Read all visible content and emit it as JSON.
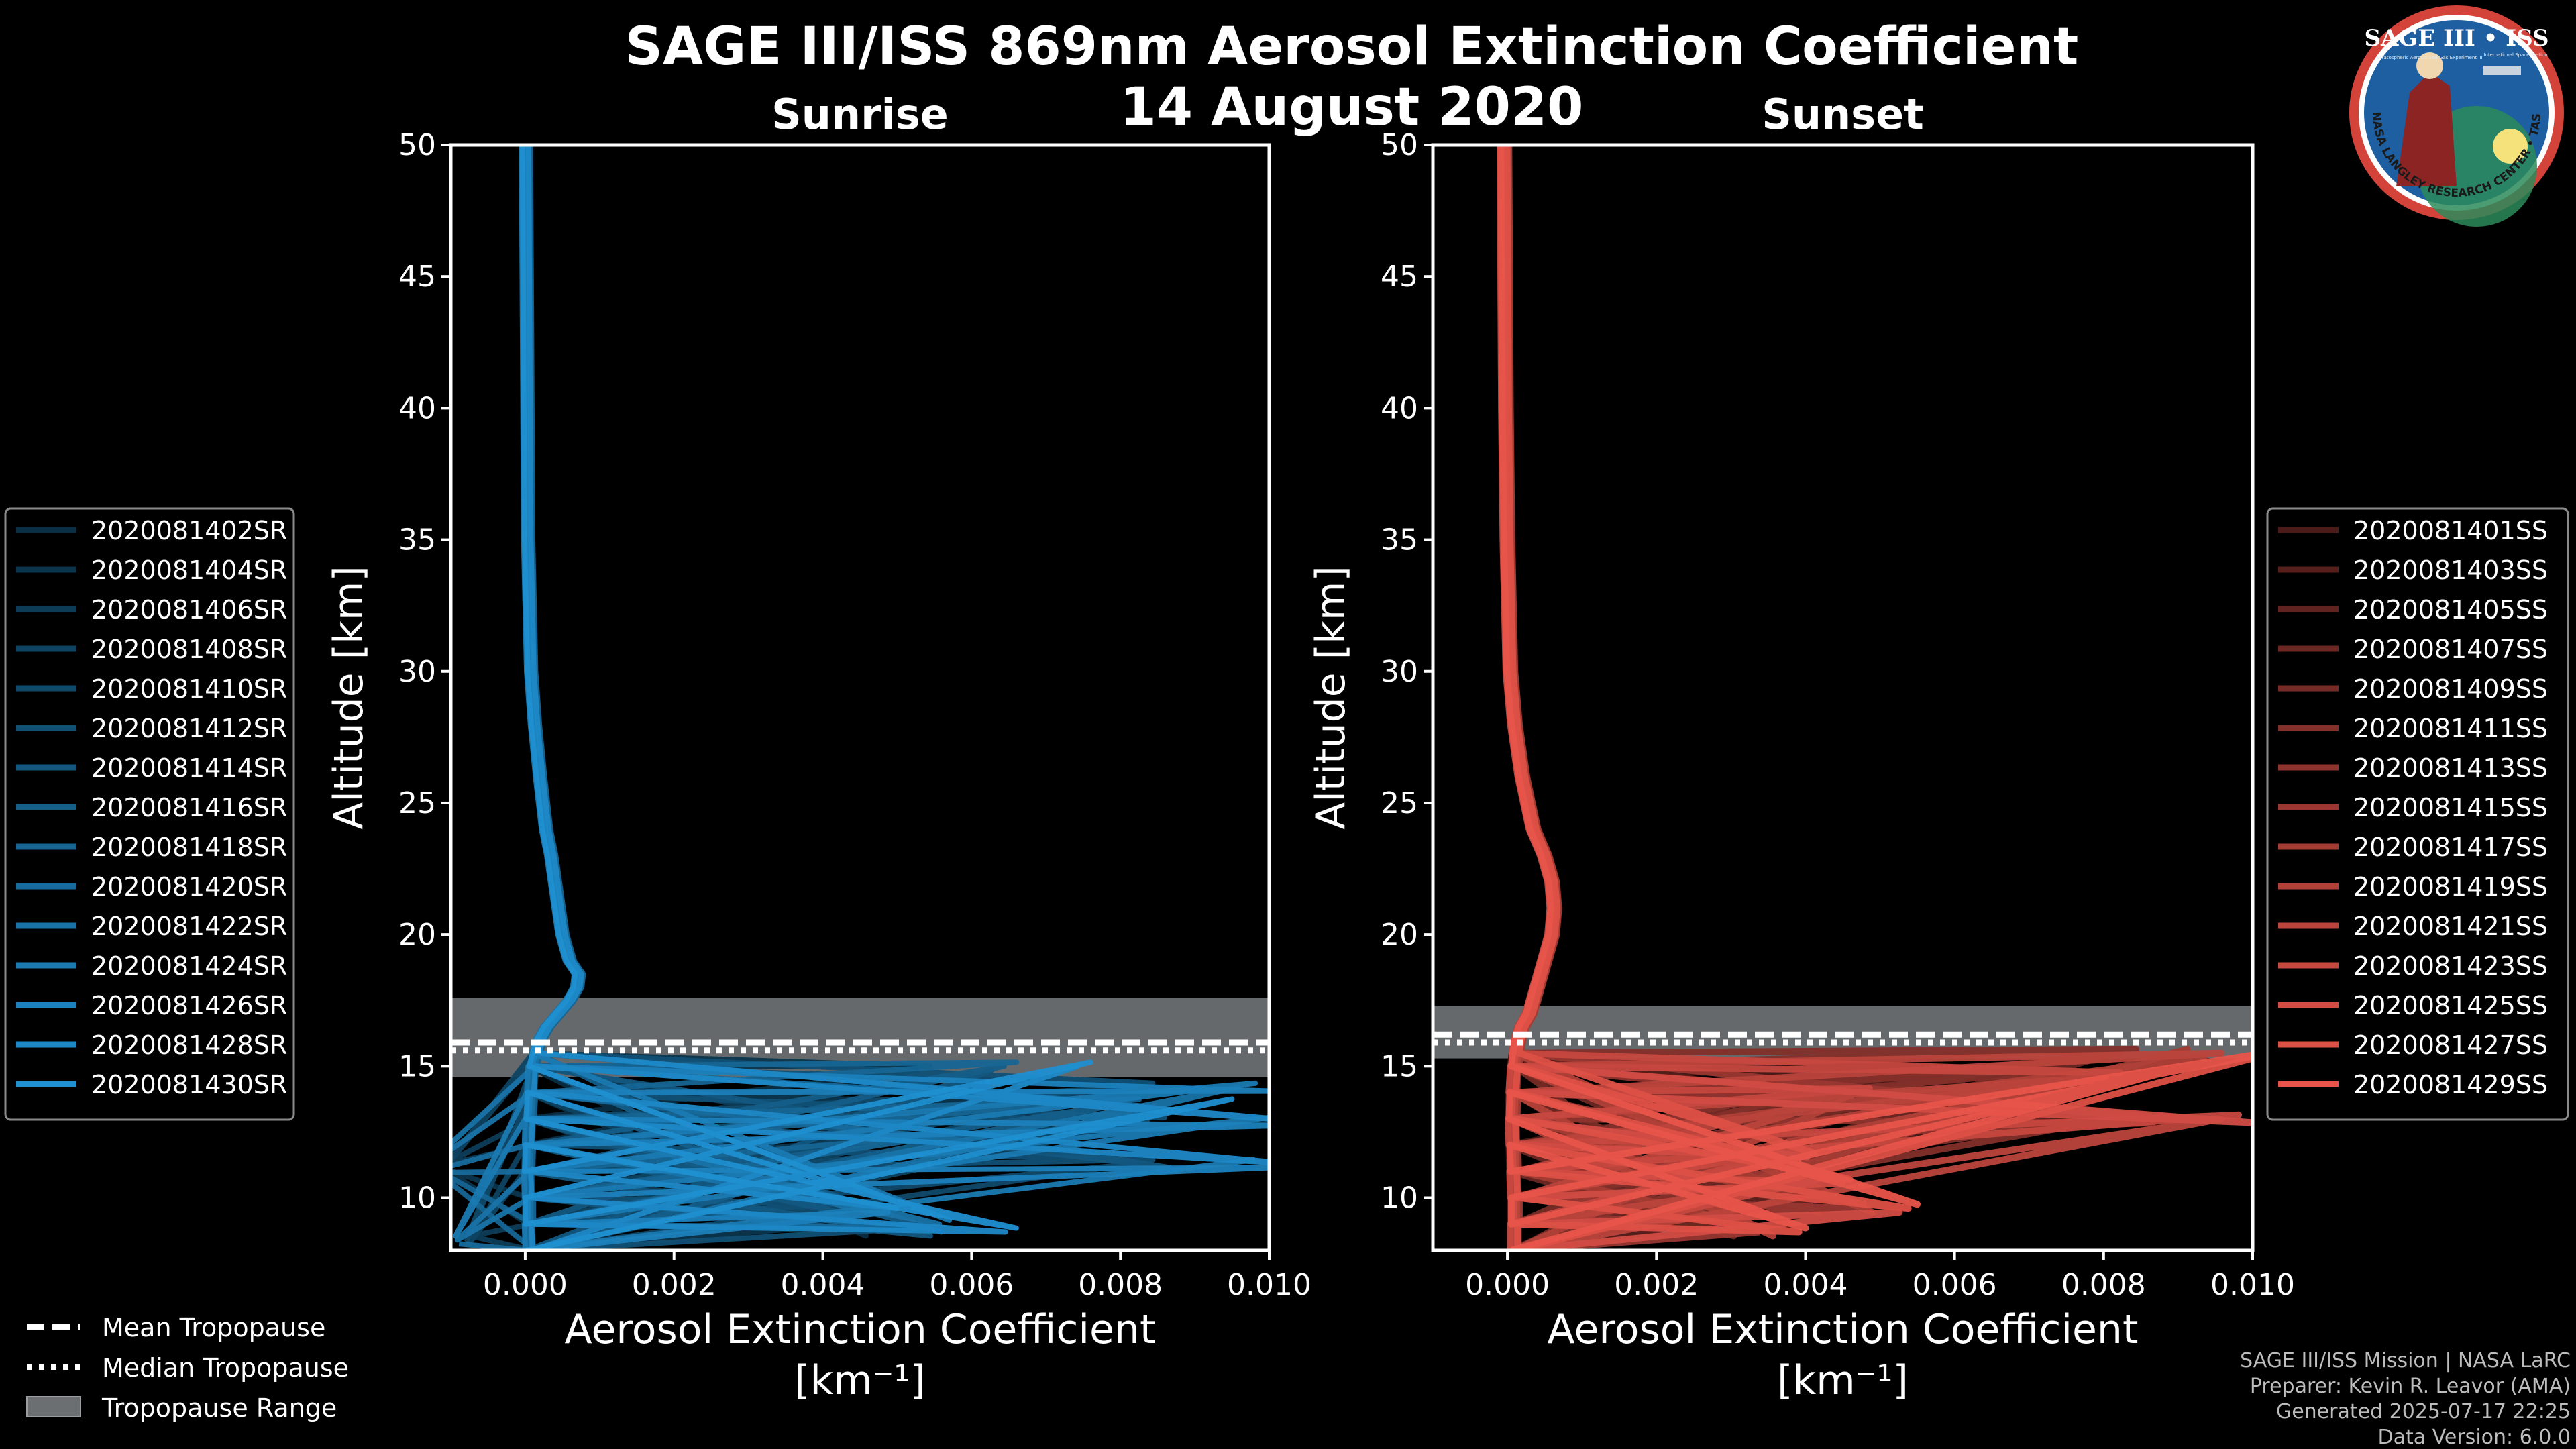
{
  "title_line1": "SAGE III/ISS 869nm Aerosol Extinction Coefficient",
  "title_line2": "14 August 2020",
  "logo": {
    "text_top": "SAGE III • ISS",
    "text_ring": "BALL • NASA LANGLEY RESEARCH CENTER • TAS-I • ESA",
    "small_left": "Stratospheric Aerosol and Gas Experiment III",
    "small_right": "International Space Station"
  },
  "footer": {
    "line1": "SAGE III/ISS Mission | NASA LaRC",
    "line2": "Preparer: Kevin R. Leavor (AMA)",
    "line3": "Generated 2025-07-17 22:25",
    "line4": "Data Version: 6.0.0"
  },
  "tropopause_legend": [
    {
      "label": "Mean Tropopause",
      "style": "dashed"
    },
    {
      "label": "Median Tropopause",
      "style": "dotted"
    },
    {
      "label": "Tropopause Range",
      "style": "patch"
    }
  ],
  "colors": {
    "sunrise": "#1f8fd0",
    "sunset": "#e8544a",
    "range_patch": "#6b6f72",
    "frame": "#ffffff"
  },
  "chart_data": [
    {
      "type": "line",
      "subtitle": "Sunrise",
      "xlabel": "Aerosol Extinction Coefficient",
      "xunits": "[km⁻¹]",
      "ylabel": "Altitude [km]",
      "xlim": [
        -0.001,
        0.01
      ],
      "ylim": [
        8,
        50
      ],
      "xticks": [
        0.0,
        0.002,
        0.004,
        0.006,
        0.008,
        0.01
      ],
      "xtick_labels": [
        "0.000",
        "0.002",
        "0.004",
        "0.006",
        "0.008",
        "0.010"
      ],
      "yticks": [
        10,
        15,
        20,
        25,
        30,
        35,
        40,
        45,
        50
      ],
      "tropopause": {
        "mean": 15.9,
        "median": 15.6,
        "range": [
          14.6,
          17.6
        ]
      },
      "legend": [
        "2020081402SR",
        "2020081404SR",
        "2020081406SR",
        "2020081408SR",
        "2020081410SR",
        "2020081412SR",
        "2020081414SR",
        "2020081416SR",
        "2020081418SR",
        "2020081420SR",
        "2020081422SR",
        "2020081424SR",
        "2020081426SR",
        "2020081428SR",
        "2020081430SR"
      ],
      "profile": {
        "alt": [
          50,
          45,
          40,
          35,
          30,
          28,
          26,
          24,
          23,
          22,
          21,
          20,
          19,
          18.5,
          18,
          17.5,
          17,
          16.5,
          16,
          15.5,
          15,
          14,
          13,
          12,
          11,
          10,
          9,
          8
        ],
        "ext": [
          1e-05,
          2e-05,
          3e-05,
          4e-05,
          8e-05,
          0.00013,
          0.0002,
          0.00028,
          0.00035,
          0.0004,
          0.00045,
          0.0005,
          0.0006,
          0.00072,
          0.0007,
          0.0006,
          0.00045,
          0.0003,
          0.0002,
          0.00015,
          0.0001,
          8e-05,
          6e-05,
          5e-05,
          4e-05,
          5e-05,
          5e-05,
          6e-05
        ]
      },
      "spikes": [
        {
          "alt": 15.0,
          "ext": 0.0076
        },
        {
          "alt": 14.2,
          "ext": 0.0105
        },
        {
          "alt": 13.6,
          "ext": 0.0095
        },
        {
          "alt": 12.9,
          "ext": 0.0107
        },
        {
          "alt": 12.3,
          "ext": 0.0067
        },
        {
          "alt": 11.3,
          "ext": 0.0105
        },
        {
          "alt": 11.1,
          "ext": -0.0015
        },
        {
          "alt": 9.6,
          "ext": 0.0051
        },
        {
          "alt": 9.0,
          "ext": 0.0061
        },
        {
          "alt": 8.7,
          "ext": 0.0066
        },
        {
          "alt": 8.4,
          "ext": -0.001
        }
      ]
    },
    {
      "type": "line",
      "subtitle": "Sunset",
      "xlabel": "Aerosol Extinction Coefficient",
      "xunits": "[km⁻¹]",
      "ylabel": "Altitude [km]",
      "xlim": [
        -0.001,
        0.01
      ],
      "ylim": [
        8,
        50
      ],
      "xticks": [
        0.0,
        0.002,
        0.004,
        0.006,
        0.008,
        0.01
      ],
      "xtick_labels": [
        "0.000",
        "0.002",
        "0.004",
        "0.006",
        "0.008",
        "0.010"
      ],
      "yticks": [
        10,
        15,
        20,
        25,
        30,
        35,
        40,
        45,
        50
      ],
      "tropopause": {
        "mean": 16.2,
        "median": 15.9,
        "range": [
          15.3,
          17.3
        ]
      },
      "legend": [
        "2020081401SS",
        "2020081403SS",
        "2020081405SS",
        "2020081407SS",
        "2020081409SS",
        "2020081411SS",
        "2020081413SS",
        "2020081415SS",
        "2020081417SS",
        "2020081419SS",
        "2020081421SS",
        "2020081423SS",
        "2020081425SS",
        "2020081427SS",
        "2020081429SS"
      ],
      "profile": {
        "alt": [
          50,
          45,
          40,
          35,
          30,
          28,
          26,
          24,
          23,
          22,
          21,
          20,
          19,
          18,
          17,
          16.5,
          16,
          15.5,
          15,
          14,
          13,
          12,
          11,
          10,
          9,
          8
        ],
        "ext": [
          -4e-05,
          -3e-05,
          -2e-05,
          0.0,
          4e-05,
          0.0001,
          0.0002,
          0.00035,
          0.0005,
          0.0006,
          0.00063,
          0.0006,
          0.0005,
          0.0004,
          0.0003,
          0.0002,
          0.00015,
          0.00012,
          0.0001,
          8e-05,
          7e-05,
          8e-05,
          9e-05,
          0.0001,
          0.0001,
          0.0001
        ]
      },
      "spikes": [
        {
          "alt": 15.5,
          "ext": 0.0105
        },
        {
          "alt": 15.0,
          "ext": 0.0095
        },
        {
          "alt": 14.6,
          "ext": 0.0088
        },
        {
          "alt": 14.2,
          "ext": 0.0105
        },
        {
          "alt": 14.0,
          "ext": 0.0052
        },
        {
          "alt": 13.6,
          "ext": 0.0101
        },
        {
          "alt": 13.0,
          "ext": 0.0105
        },
        {
          "alt": 12.4,
          "ext": 0.0078
        },
        {
          "alt": 11.7,
          "ext": 0.0042
        },
        {
          "alt": 11.3,
          "ext": 0.0062
        },
        {
          "alt": 10.7,
          "ext": 0.0047
        },
        {
          "alt": 10.0,
          "ext": 0.0069
        },
        {
          "alt": 9.6,
          "ext": 0.0055
        },
        {
          "alt": 9.2,
          "ext": 0.0051
        },
        {
          "alt": 8.7,
          "ext": 0.004
        },
        {
          "alt": 8.3,
          "ext": 0.0025
        }
      ]
    }
  ]
}
